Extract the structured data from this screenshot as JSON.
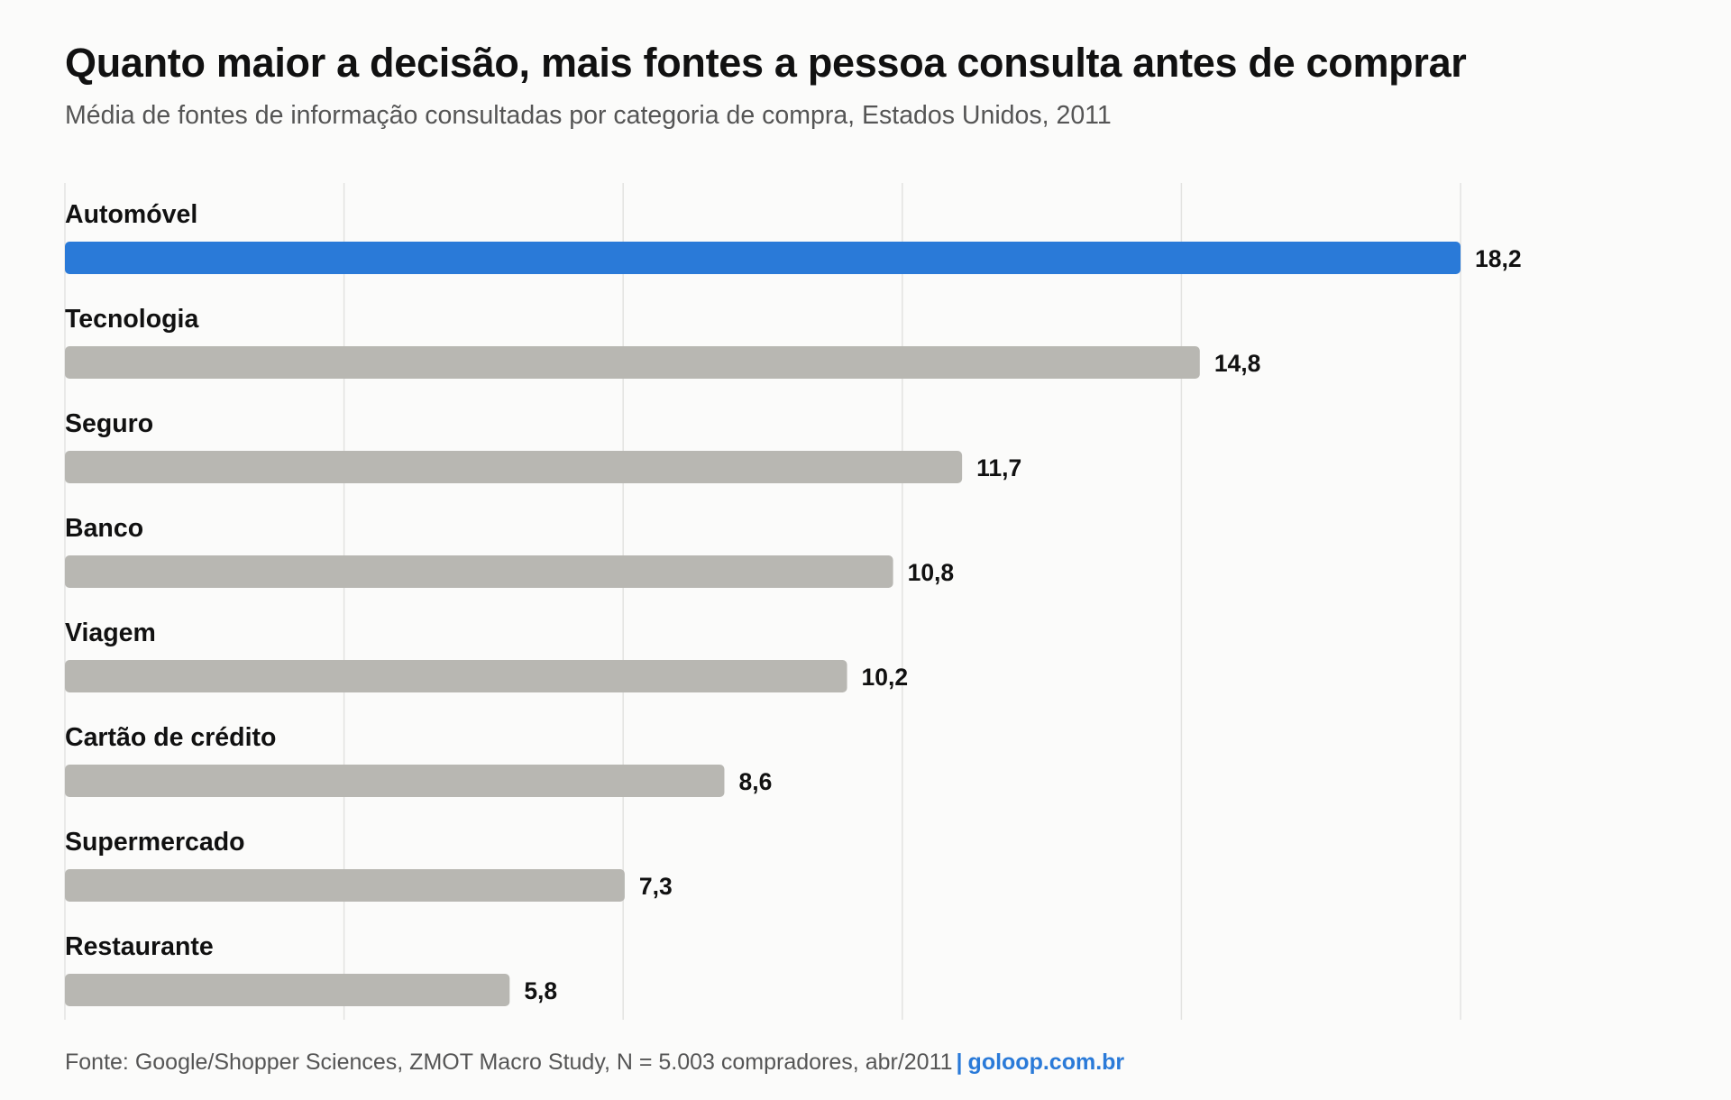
{
  "chart_data": {
    "type": "bar",
    "orientation": "horizontal",
    "title": "Quanto maior a decisão, mais fontes a pessoa consulta antes de comprar",
    "subtitle": "Média de fontes de informação consultadas por categoria de compra, Estados Unidos, 2011",
    "categories": [
      "Automóvel",
      "Tecnologia",
      "Seguro",
      "Banco",
      "Viagem",
      "Cartão de crédito",
      "Supermercado",
      "Restaurante"
    ],
    "values": [
      18.2,
      14.8,
      11.7,
      10.8,
      10.2,
      8.6,
      7.3,
      5.8
    ],
    "value_labels": [
      "18,2",
      "14,8",
      "11,7",
      "10,8",
      "10,2",
      "8,6",
      "7,3",
      "5,8"
    ],
    "highlight_index": 0,
    "xlim": [
      0,
      18.2
    ],
    "xticks": [
      0,
      3.64,
      7.28,
      10.92,
      14.56,
      18.2
    ],
    "grid": true,
    "xlabel": "",
    "ylabel": "",
    "colors": {
      "highlight": "#2a7ad8",
      "default": "#b8b7b2",
      "grid": "#e3e3e1"
    }
  },
  "footer": {
    "source": "Fonte: Google/Shopper Sciences, ZMOT Macro Study, N = 5.003 compradores, abr/2011",
    "separator": "|",
    "brand": "goloop.com.br"
  }
}
